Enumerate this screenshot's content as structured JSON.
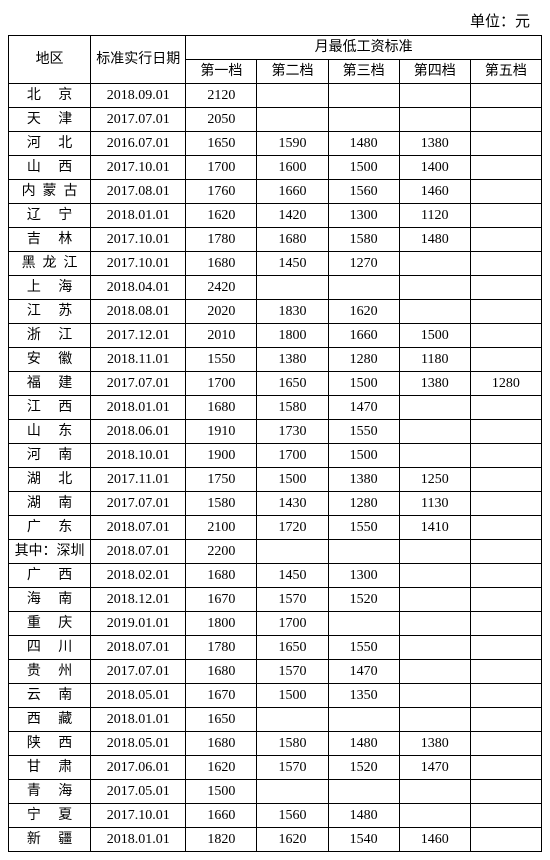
{
  "unit_label": "单位：元",
  "header": {
    "region": "地区",
    "date": "标准实行日期",
    "group": "月最低工资标准",
    "tiers": [
      "第一档",
      "第二档",
      "第三档",
      "第四档",
      "第五档"
    ]
  },
  "rows": [
    {
      "region": "北 京",
      "date": "2018.09.01",
      "vals": [
        "2120",
        "",
        "",
        "",
        ""
      ]
    },
    {
      "region": "天 津",
      "date": "2017.07.01",
      "vals": [
        "2050",
        "",
        "",
        "",
        ""
      ]
    },
    {
      "region": "河 北",
      "date": "2016.07.01",
      "vals": [
        "1650",
        "1590",
        "1480",
        "1380",
        ""
      ]
    },
    {
      "region": "山 西",
      "date": "2017.10.01",
      "vals": [
        "1700",
        "1600",
        "1500",
        "1400",
        ""
      ]
    },
    {
      "region": "内蒙古",
      "date": "2017.08.01",
      "vals": [
        "1760",
        "1660",
        "1560",
        "1460",
        ""
      ]
    },
    {
      "region": "辽 宁",
      "date": "2018.01.01",
      "vals": [
        "1620",
        "1420",
        "1300",
        "1120",
        ""
      ]
    },
    {
      "region": "吉 林",
      "date": "2017.10.01",
      "vals": [
        "1780",
        "1680",
        "1580",
        "1480",
        ""
      ]
    },
    {
      "region": "黑龙江",
      "date": "2017.10.01",
      "vals": [
        "1680",
        "1450",
        "1270",
        "",
        ""
      ]
    },
    {
      "region": "上 海",
      "date": "2018.04.01",
      "vals": [
        "2420",
        "",
        "",
        "",
        ""
      ]
    },
    {
      "region": "江 苏",
      "date": "2018.08.01",
      "vals": [
        "2020",
        "1830",
        "1620",
        "",
        ""
      ]
    },
    {
      "region": "浙 江",
      "date": "2017.12.01",
      "vals": [
        "2010",
        "1800",
        "1660",
        "1500",
        ""
      ]
    },
    {
      "region": "安 徽",
      "date": "2018.11.01",
      "vals": [
        "1550",
        "1380",
        "1280",
        "1180",
        ""
      ]
    },
    {
      "region": "福 建",
      "date": "2017.07.01",
      "vals": [
        "1700",
        "1650",
        "1500",
        "1380",
        "1280"
      ]
    },
    {
      "region": "江 西",
      "date": "2018.01.01",
      "vals": [
        "1680",
        "1580",
        "1470",
        "",
        ""
      ]
    },
    {
      "region": "山 东",
      "date": "2018.06.01",
      "vals": [
        "1910",
        "1730",
        "1550",
        "",
        ""
      ]
    },
    {
      "region": "河 南",
      "date": "2018.10.01",
      "vals": [
        "1900",
        "1700",
        "1500",
        "",
        ""
      ]
    },
    {
      "region": "湖 北",
      "date": "2017.11.01",
      "vals": [
        "1750",
        "1500",
        "1380",
        "1250",
        ""
      ]
    },
    {
      "region": "湖 南",
      "date": "2017.07.01",
      "vals": [
        "1580",
        "1430",
        "1280",
        "1130",
        ""
      ]
    },
    {
      "region": "广 东",
      "date": "2018.07.01",
      "vals": [
        "2100",
        "1720",
        "1550",
        "1410",
        ""
      ]
    },
    {
      "region": "其中：深圳",
      "date": "2018.07.01",
      "vals": [
        "2200",
        "",
        "",
        "",
        ""
      ],
      "noletterspace": true
    },
    {
      "region": "广 西",
      "date": "2018.02.01",
      "vals": [
        "1680",
        "1450",
        "1300",
        "",
        ""
      ]
    },
    {
      "region": "海 南",
      "date": "2018.12.01",
      "vals": [
        "1670",
        "1570",
        "1520",
        "",
        ""
      ]
    },
    {
      "region": "重 庆",
      "date": "2019.01.01",
      "vals": [
        "1800",
        "1700",
        "",
        "",
        ""
      ]
    },
    {
      "region": "四 川",
      "date": "2018.07.01",
      "vals": [
        "1780",
        "1650",
        "1550",
        "",
        ""
      ]
    },
    {
      "region": "贵 州",
      "date": "2017.07.01",
      "vals": [
        "1680",
        "1570",
        "1470",
        "",
        ""
      ]
    },
    {
      "region": "云 南",
      "date": "2018.05.01",
      "vals": [
        "1670",
        "1500",
        "1350",
        "",
        ""
      ]
    },
    {
      "region": "西 藏",
      "date": "2018.01.01",
      "vals": [
        "1650",
        "",
        "",
        "",
        ""
      ]
    },
    {
      "region": "陕 西",
      "date": "2018.05.01",
      "vals": [
        "1680",
        "1580",
        "1480",
        "1380",
        ""
      ]
    },
    {
      "region": "甘 肃",
      "date": "2017.06.01",
      "vals": [
        "1620",
        "1570",
        "1520",
        "1470",
        ""
      ]
    },
    {
      "region": "青 海",
      "date": "2017.05.01",
      "vals": [
        "1500",
        "",
        "",
        "",
        ""
      ]
    },
    {
      "region": "宁 夏",
      "date": "2017.10.01",
      "vals": [
        "1660",
        "1560",
        "1480",
        "",
        ""
      ]
    },
    {
      "region": "新 疆",
      "date": "2018.01.01",
      "vals": [
        "1820",
        "1620",
        "1540",
        "1460",
        ""
      ]
    }
  ]
}
